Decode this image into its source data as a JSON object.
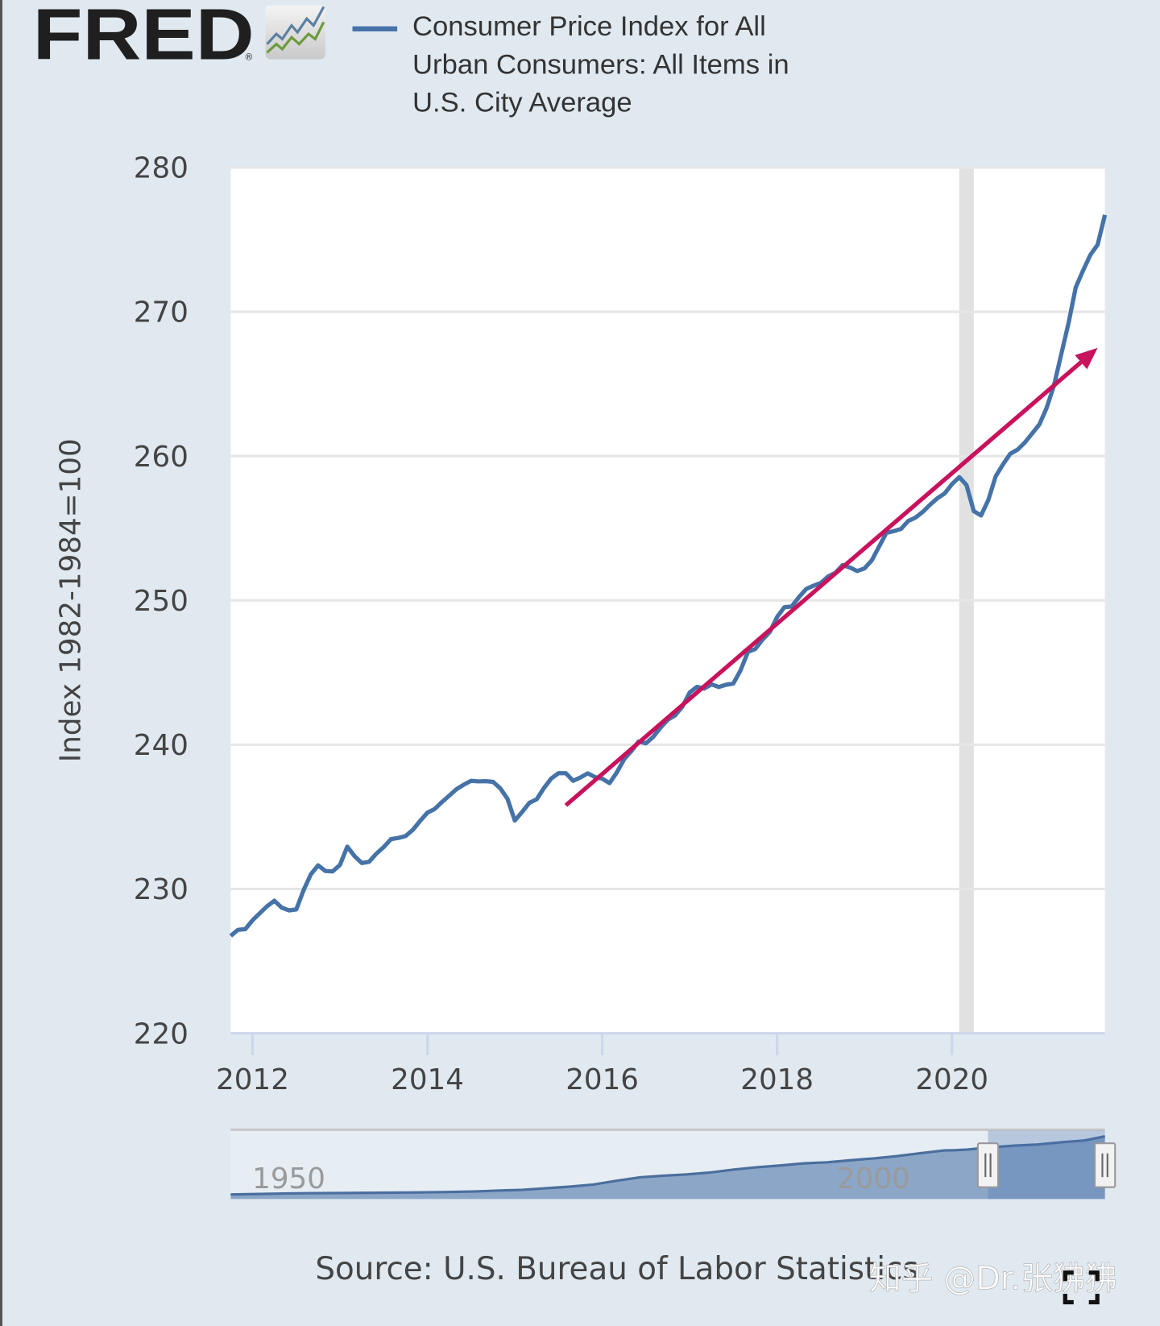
{
  "logo": {
    "text": "FRED",
    "registered": "®",
    "icon": "fred-chart-logo-icon"
  },
  "legend": {
    "color": "#4572a7",
    "lines": [
      "Consumer Price Index for All",
      "Urban Consumers: All Items in",
      "U.S. City Average"
    ]
  },
  "source": "Source: U.S. Bureau of Labor Statistics",
  "watermark": "知乎 @Dr.张狒狒",
  "fullscreen_icon": "fullscreen-icon",
  "chart_data": {
    "type": "line",
    "title": "",
    "series": [
      {
        "name": "Consumer Price Index for All Urban Consumers: All Items in U.S. City Average",
        "color": "#4572a7",
        "start": "2011-10",
        "frequency": "monthly",
        "values": [
          226.75,
          227.17,
          227.22,
          227.84,
          228.33,
          228.81,
          229.19,
          228.71,
          228.52,
          228.59,
          229.92,
          231.02,
          231.64,
          231.25,
          231.22,
          231.68,
          232.94,
          232.28,
          231.8,
          231.89,
          232.45,
          232.9,
          233.46,
          233.54,
          233.67,
          234.1,
          234.72,
          235.29,
          235.55,
          236.03,
          236.47,
          236.92,
          237.23,
          237.5,
          237.46,
          237.48,
          237.43,
          236.98,
          236.25,
          234.75,
          235.34,
          235.98,
          236.22,
          237.0,
          237.66,
          238.03,
          238.03,
          237.5,
          237.73,
          238.02,
          237.76,
          237.65,
          237.34,
          238.08,
          238.99,
          239.56,
          240.22,
          240.1,
          240.55,
          241.18,
          241.74,
          242.03,
          242.64,
          243.62,
          244.01,
          243.89,
          244.19,
          244.0,
          244.16,
          244.24,
          245.18,
          246.44,
          246.63,
          247.28,
          247.81,
          248.86,
          249.53,
          249.58,
          250.23,
          250.79,
          251.02,
          251.21,
          251.66,
          251.91,
          252.45,
          252.28,
          252.04,
          252.22,
          252.78,
          253.74,
          254.68,
          254.8,
          254.95,
          255.5,
          255.74,
          256.14,
          256.63,
          257.08,
          257.41,
          258.05,
          258.55,
          257.99,
          256.19,
          255.89,
          256.96,
          258.6,
          259.43,
          260.16,
          260.45,
          260.94,
          261.56,
          262.2,
          263.35,
          264.88,
          267.05,
          269.2,
          271.7,
          272.87,
          273.95,
          274.65,
          276.72
        ]
      }
    ],
    "xlabel": "",
    "ylabel": "Index 1982-1984=100",
    "xlim": [
      "2011-10",
      "2021-10"
    ],
    "ylim": [
      220,
      280
    ],
    "xticks": [
      "2012",
      "2014",
      "2016",
      "2018",
      "2020"
    ],
    "yticks": [
      "220",
      "230",
      "240",
      "250",
      "260",
      "270",
      "280"
    ],
    "grid": "horizontal",
    "recession_shading": {
      "from": "2020-02",
      "to": "2020-04",
      "color": "#e1e1e1"
    },
    "annotation": {
      "type": "arrow",
      "color": "#c8125c",
      "from": {
        "x": "2015-08",
        "y": 235.8
      },
      "to": {
        "x": "2021-09",
        "y": 267.5
      }
    },
    "navigator": {
      "range": [
        "1947",
        "2021"
      ],
      "selected": [
        "2011-10",
        "2021-10"
      ],
      "tick_labels": [
        "1950",
        "2000"
      ],
      "overview": [
        [
          1947,
          21.5
        ],
        [
          1952,
          26.5
        ],
        [
          1957,
          28
        ],
        [
          1962,
          30
        ],
        [
          1966,
          32.5
        ],
        [
          1968,
          35
        ],
        [
          1970,
          39
        ],
        [
          1972,
          42
        ],
        [
          1974,
          49
        ],
        [
          1976,
          56
        ],
        [
          1978,
          65
        ],
        [
          1980,
          82
        ],
        [
          1982,
          97
        ],
        [
          1984,
          104
        ],
        [
          1986,
          110
        ],
        [
          1988,
          118
        ],
        [
          1990,
          131
        ],
        [
          1992,
          141
        ],
        [
          1994,
          149
        ],
        [
          1996,
          158
        ],
        [
          1998,
          163
        ],
        [
          2000,
          172
        ],
        [
          2002,
          180
        ],
        [
          2004,
          190
        ],
        [
          2006,
          203
        ],
        [
          2008,
          215
        ],
        [
          2009,
          216
        ],
        [
          2010,
          219
        ],
        [
          2012,
          229
        ],
        [
          2014,
          236
        ],
        [
          2016,
          241
        ],
        [
          2018,
          251
        ],
        [
          2020,
          259
        ],
        [
          2021.75,
          277
        ]
      ]
    }
  }
}
